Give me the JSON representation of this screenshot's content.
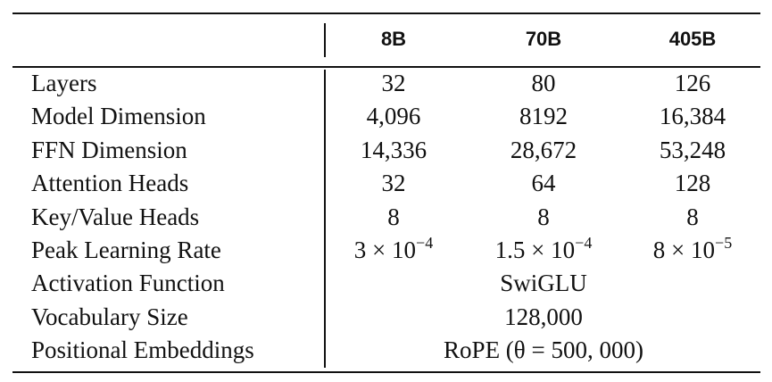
{
  "table": {
    "columns": [
      "8B",
      "70B",
      "405B"
    ],
    "rows": [
      {
        "label": "Layers",
        "values": [
          "32",
          "80",
          "126"
        ]
      },
      {
        "label": "Model Dimension",
        "values": [
          "4,096",
          "8192",
          "16,384"
        ]
      },
      {
        "label": "FFN Dimension",
        "values": [
          "14,336",
          "28,672",
          "53,248"
        ]
      },
      {
        "label": "Attention Heads",
        "values": [
          "32",
          "64",
          "128"
        ]
      },
      {
        "label": "Key/Value Heads",
        "values": [
          "8",
          "8",
          "8"
        ]
      },
      {
        "label": "Peak Learning Rate",
        "values": [
          {
            "base": "3 × 10",
            "exp": "−4"
          },
          {
            "base": "1.5 × 10",
            "exp": "−4"
          },
          {
            "base": "8 × 10",
            "exp": "−5"
          }
        ]
      },
      {
        "label": "Activation Function",
        "value": "SwiGLU"
      },
      {
        "label": "Vocabulary Size",
        "value": "128,000"
      },
      {
        "label": "Positional Embeddings",
        "value": "RoPE (θ = 500, 000)"
      }
    ]
  }
}
